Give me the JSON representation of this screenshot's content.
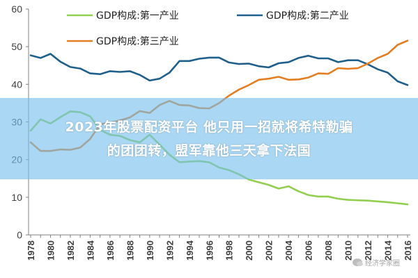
{
  "chart_data": {
    "type": "line",
    "x": [
      1978,
      1979,
      1980,
      1981,
      1982,
      1983,
      1984,
      1985,
      1986,
      1987,
      1988,
      1989,
      1990,
      1991,
      1992,
      1993,
      1994,
      1995,
      1996,
      1997,
      1998,
      1999,
      2000,
      2001,
      2002,
      2003,
      2004,
      2005,
      2006,
      2007,
      2008,
      2009,
      2010,
      2011,
      2012,
      2013,
      2014,
      2015,
      2016
    ],
    "x_tick_labels": [
      "1978",
      "1980",
      "1982",
      "1984",
      "1986",
      "1988",
      "1990",
      "1992",
      "1994",
      "1996",
      "1998",
      "2000",
      "2002",
      "2004",
      "2006",
      "2008",
      "2010",
      "2012",
      "2014",
      "2016"
    ],
    "y_ticks": [
      "0",
      "10",
      "20",
      "30",
      "40",
      "50",
      "60"
    ],
    "ylim": [
      0,
      60
    ],
    "grid": false,
    "legend_position": "top",
    "series": [
      {
        "name": "GDP构成:第一产业",
        "color": "#92cf50",
        "values": [
          27.7,
          30.7,
          29.6,
          31.3,
          32.8,
          32.6,
          31.5,
          27.9,
          26.6,
          26.3,
          25.2,
          24.6,
          26.6,
          24.0,
          21.3,
          19.3,
          19.5,
          19.6,
          19.3,
          17.9,
          17.2,
          16.1,
          14.7,
          14.0,
          13.3,
          12.3,
          12.9,
          11.6,
          10.6,
          10.2,
          10.2,
          9.6,
          9.3,
          9.2,
          9.1,
          8.9,
          8.7,
          8.4,
          8.1
        ]
      },
      {
        "name": "GDP构成:第二产业",
        "color": "#1f5f8b",
        "values": [
          47.7,
          47.0,
          48.1,
          46.0,
          44.6,
          44.2,
          42.9,
          42.7,
          43.5,
          43.3,
          43.5,
          42.5,
          41.0,
          41.5,
          43.1,
          46.2,
          46.2,
          46.8,
          47.1,
          47.1,
          45.8,
          45.4,
          45.5,
          44.8,
          44.5,
          45.6,
          45.9,
          47.0,
          47.6,
          46.9,
          46.9,
          45.9,
          46.4,
          46.4,
          45.3,
          44.0,
          43.1,
          40.8,
          39.8
        ]
      },
      {
        "name": "GDP构成:第三产业",
        "color": "#e47e22",
        "values": [
          24.6,
          22.3,
          22.3,
          22.7,
          22.6,
          23.2,
          25.5,
          29.4,
          29.8,
          30.4,
          31.2,
          32.9,
          32.4,
          34.5,
          35.6,
          34.5,
          34.4,
          33.7,
          33.6,
          35.0,
          37.0,
          38.6,
          39.8,
          41.2,
          41.5,
          42.0,
          41.2,
          41.3,
          41.8,
          42.9,
          42.8,
          44.3,
          44.1,
          44.3,
          45.5,
          47.0,
          48.1,
          50.5,
          51.6
        ]
      }
    ]
  },
  "overlay": {
    "line1": "2023年股票配资平台 他只用一招就将希特勒骗",
    "line2": "的团团转，盟军靠他三天拿下法国"
  },
  "watermark": {
    "text": "经济学家圈"
  }
}
